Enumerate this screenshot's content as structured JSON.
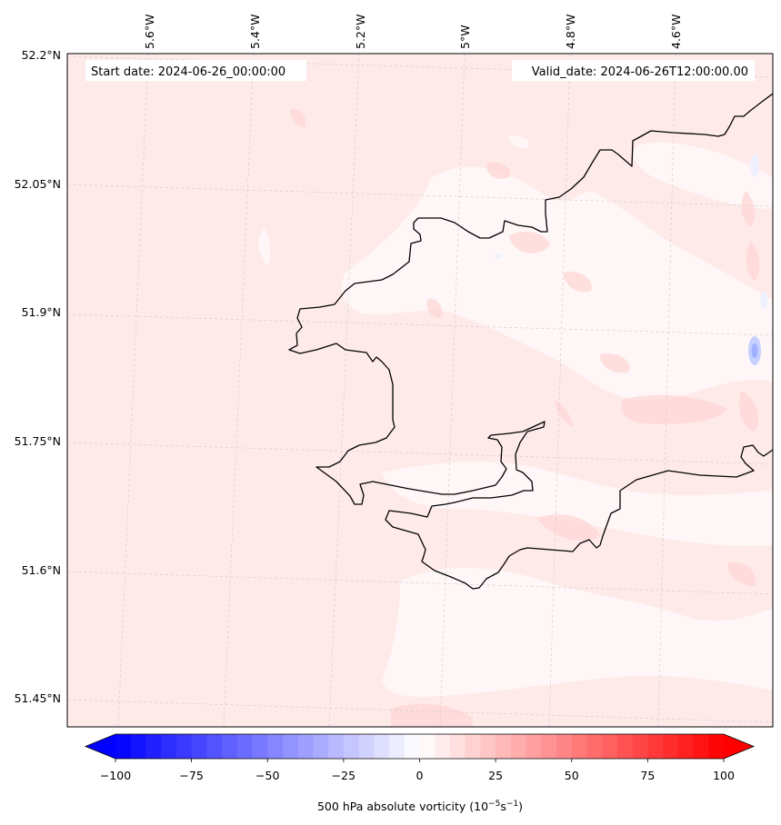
{
  "map": {
    "start_date": "Start date: 2024-06-26_00:00:00",
    "valid_date": "Valid_date: 2024-06-26T12:00:00.00",
    "lon_labels": [
      "5.6°W",
      "5.4°W",
      "5.2°W",
      "5°W",
      "4.8°W",
      "4.6°W"
    ],
    "lat_labels": [
      "52.2°N",
      "52.05°N",
      "51.9°N",
      "51.75°N",
      "51.6°N",
      "51.45°N"
    ],
    "land_fill": "#ffeaea",
    "coast_color": "#000000"
  },
  "colorbar": {
    "tick_labels": [
      "−100",
      "−75",
      "−50",
      "−25",
      "0",
      "25",
      "50",
      "75",
      "100"
    ],
    "title_main": "500 hPa absolute vorticity (10",
    "title_sup1": "−5",
    "title_mid": "s",
    "title_sup2": "−1",
    "title_end": ")",
    "color_low": "#0000ff",
    "color_mid": "#ffffff",
    "color_high": "#ff0000"
  }
}
